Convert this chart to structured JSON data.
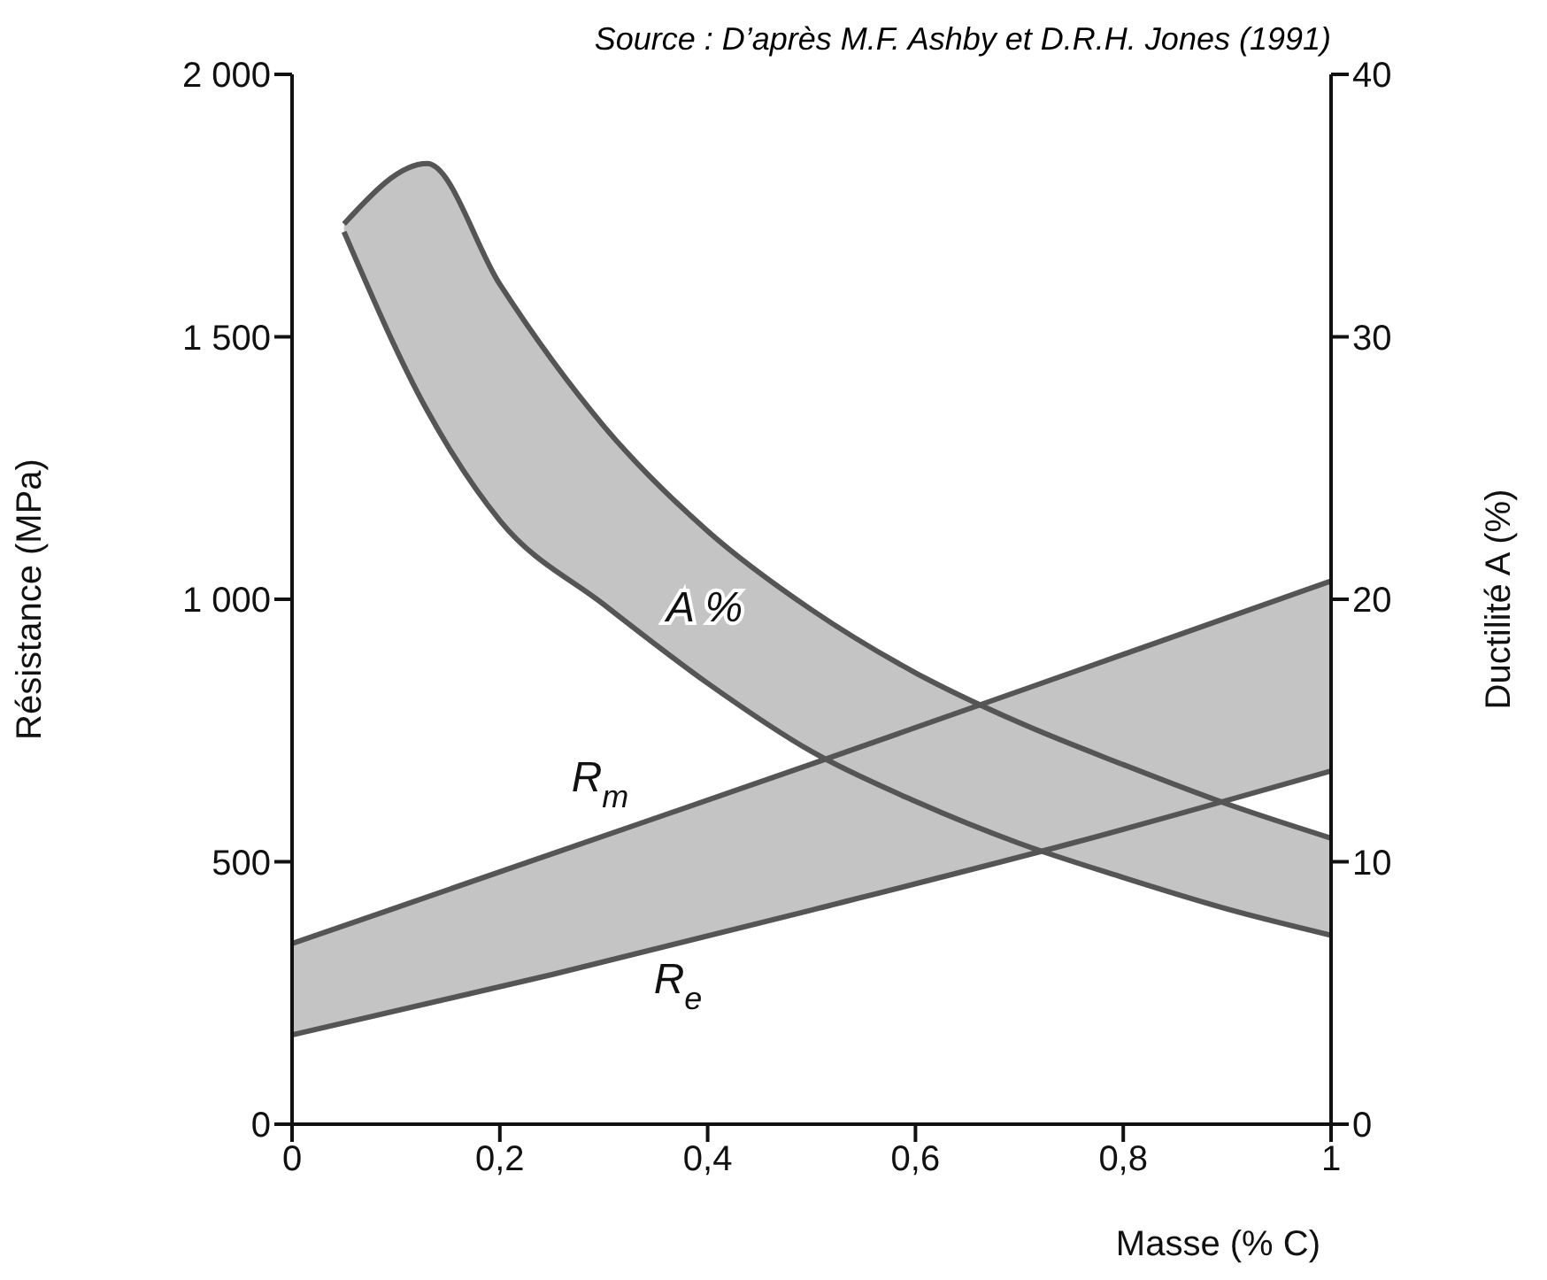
{
  "chart_data": {
    "type": "line",
    "xlabel": "Masse (% C)",
    "ylabel": "Résistance (MPa)",
    "y2label": "Ductilité A (%)",
    "xlim": [
      0,
      1
    ],
    "xticks": [
      0,
      {
        "value": 0.2,
        "label": "0,2"
      },
      {
        "value": 0.4,
        "label": "0,4"
      },
      {
        "value": 0.6,
        "label": "0,6"
      },
      {
        "value": 0.8,
        "label": "0,8"
      },
      1
    ],
    "ylim": [
      0,
      2000
    ],
    "yticks": [
      0,
      500,
      {
        "value": 1000,
        "label": "1 000"
      },
      {
        "value": 1500,
        "label": "1 500"
      },
      {
        "value": 2000,
        "label": "2 000"
      }
    ],
    "y2lim": [
      0,
      40
    ],
    "y2ticks": [
      0,
      10,
      20,
      30,
      40
    ],
    "grid": false,
    "series": [
      {
        "axis": "y2",
        "color": "#555555",
        "x": [
          0.05,
          0.13,
          0.2,
          0.3,
          0.4,
          0.5,
          0.6,
          0.7,
          0.8,
          0.9,
          1
        ],
        "values": [
          34.3,
          36.6,
          32.0,
          26.6,
          22.6,
          19.6,
          17.2,
          15.3,
          13.7,
          12.2,
          10.9
        ],
        "lower": [
          34.0,
          27.2,
          23.0,
          19.8,
          16.8,
          14.2,
          12.3,
          10.7,
          9.4,
          8.2,
          7.2
        ],
        "upper": [
          34.3,
          36.6,
          32.0,
          26.6,
          22.6,
          19.6,
          17.2,
          15.3,
          13.7,
          12.2,
          10.9
        ]
      },
      {
        "axis": "y2",
        "color": "#555555",
        "x": [
          0.05,
          0.13,
          0.2,
          0.3,
          0.4,
          0.5,
          0.6,
          0.7,
          0.8,
          0.9,
          1
        ],
        "values": [
          34.0,
          27.2,
          23.0,
          19.8,
          16.8,
          14.2,
          12.3,
          10.7,
          9.4,
          8.2,
          7.2
        ]
      },
      {
        "axis": "y",
        "color": "#555555",
        "x": [
          0,
          0.25,
          0.5,
          0.75,
          1
        ],
        "values": [
          344,
          515,
          686,
          860,
          1035
        ],
        "lower": [
          170,
          285,
          408,
          535,
          673
        ],
        "upper": [
          344,
          515,
          686,
          860,
          1035
        ]
      },
      {
        "axis": "y",
        "color": "#555555",
        "x": [
          0,
          0.25,
          0.5,
          0.75,
          1
        ],
        "values": [
          170,
          285,
          408,
          535,
          673
        ]
      }
    ],
    "annotations": [
      "A %",
      "R$_{m}$",
      "R$_{e}$",
      "Source : D’après M.F. Ashby et D.R.H. Jones (1991)"
    ]
  }
}
